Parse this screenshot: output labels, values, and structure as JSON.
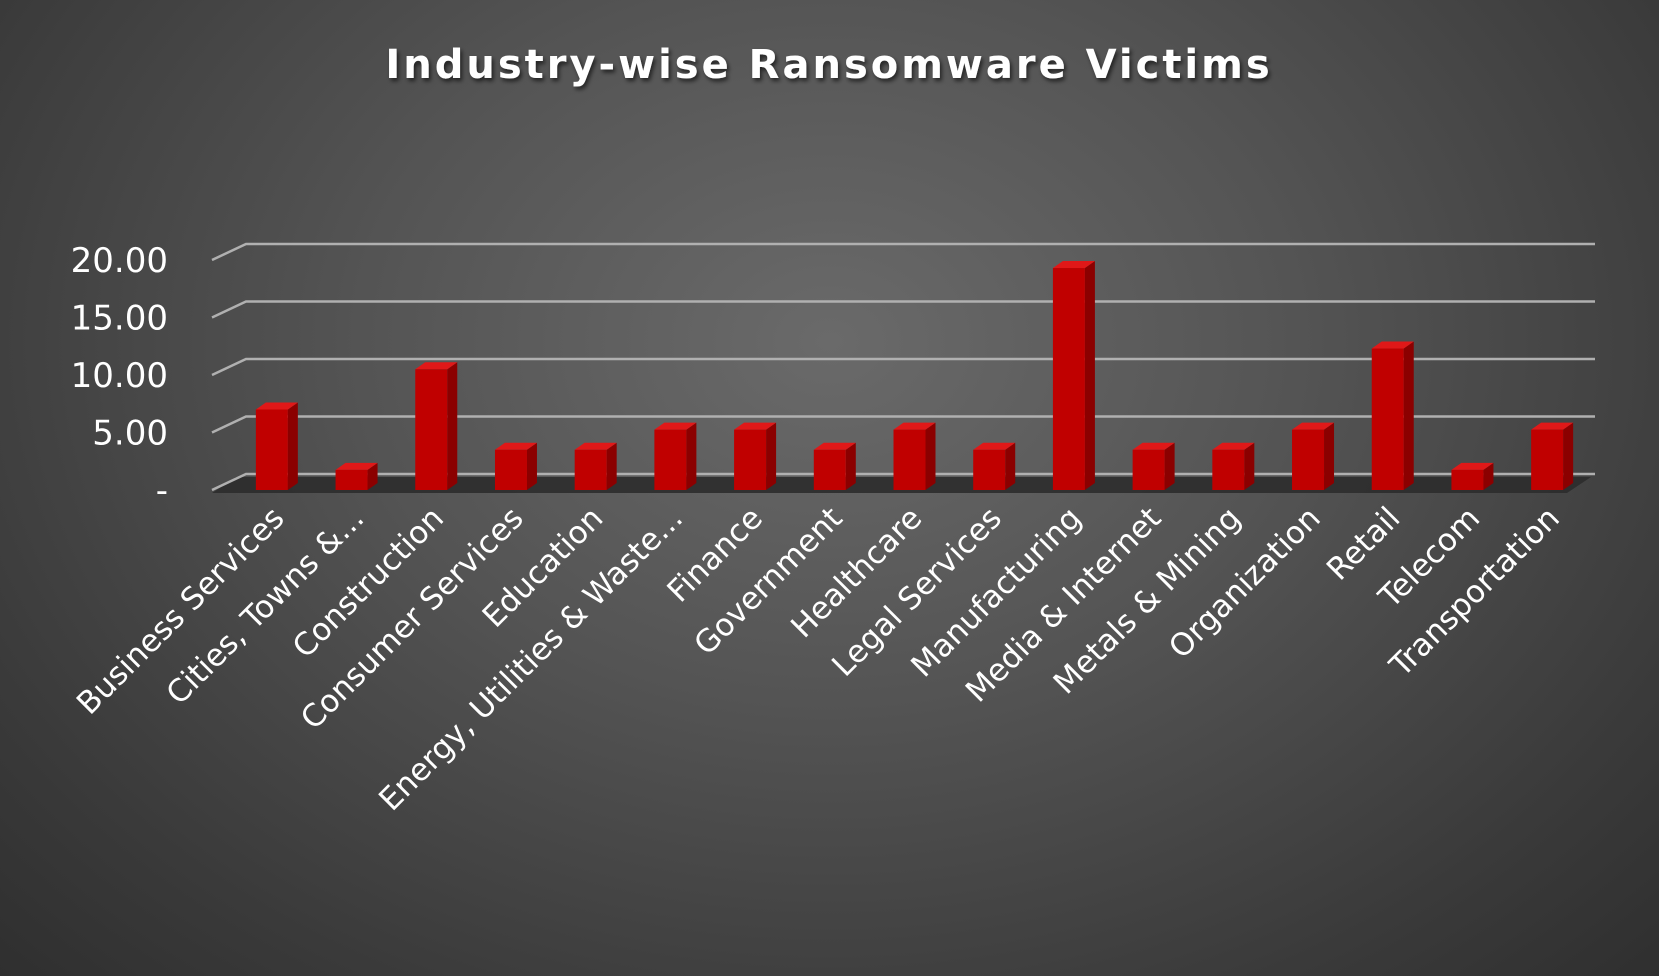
{
  "chart_data": {
    "type": "bar",
    "title": "Industry-wise Ransomware Victims",
    "categories": [
      "Business Services",
      "Cities, Towns &...",
      "Construction",
      "Consumer Services",
      "Education",
      "Energy, Utilities & Waste...",
      "Finance",
      "Government",
      "Healthcare",
      "Legal Services",
      "Manufacturing",
      "Media & Internet",
      "Metals & Mining",
      "Organization",
      "Retail",
      "Telecom",
      "Transportation"
    ],
    "values": [
      7.0,
      1.75,
      10.5,
      3.5,
      3.5,
      5.25,
      5.25,
      3.5,
      5.25,
      3.5,
      19.3,
      3.5,
      3.5,
      5.25,
      12.3,
      1.75,
      5.25
    ],
    "ylim": [
      0,
      20
    ],
    "yticks": [
      {
        "value": 0,
        "label": "-"
      },
      {
        "value": 5,
        "label": "5.00"
      },
      {
        "value": 10,
        "label": "10.00"
      },
      {
        "value": 15,
        "label": "15.00"
      },
      {
        "value": 20,
        "label": "20.00"
      }
    ],
    "grid": true,
    "legend": "none",
    "bar_color": "#c00000",
    "bar_side_color": "#8b0000",
    "bar_top_color": "#e01818",
    "gridline_color": "#b0b0b0",
    "text_color": "#ffffff"
  }
}
